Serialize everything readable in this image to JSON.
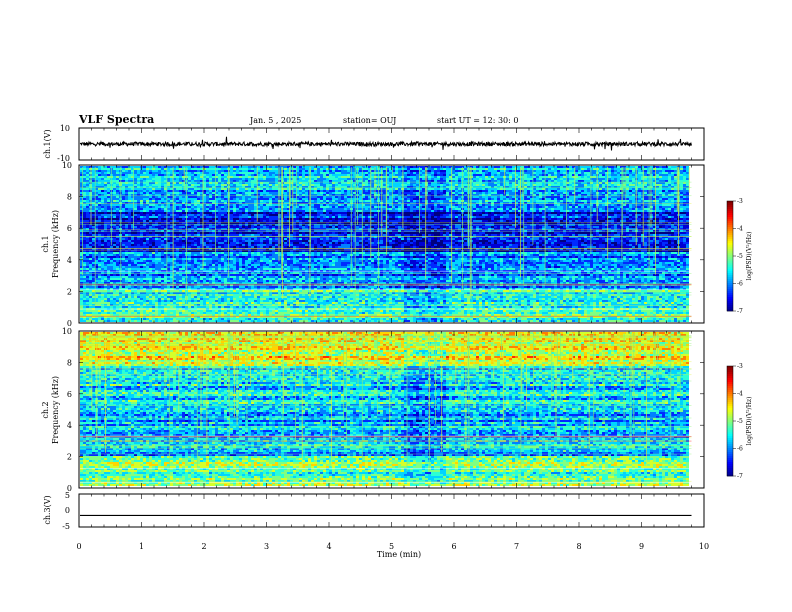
{
  "header": {
    "title": "VLF Spectra",
    "date": "Jan. 5 , 2025",
    "station": "station= OUJ",
    "start": "start UT = 12: 30: 0"
  },
  "chart_data": [
    {
      "type": "line",
      "name": "ch1-waveform",
      "ylabel": "ch.1(V)",
      "ylim": [
        -10,
        10
      ],
      "yticks": [
        "10",
        "-10"
      ],
      "x_range_min": [
        0,
        9.8
      ],
      "trace_level_v": 0,
      "trace_amplitude_v": 2.5,
      "color": "#000000"
    },
    {
      "type": "heatmap",
      "name": "ch1-spectrogram",
      "ylabel_channel": "ch.1",
      "ylabel": "Frequency (kHz)",
      "ylim": [
        0,
        10
      ],
      "yticks": [
        "0",
        "2",
        "4",
        "6",
        "8",
        "10"
      ],
      "x_range_min": [
        0,
        9.8
      ],
      "colorbar": {
        "label": "log(PSD)(V²/Hz)",
        "min": -7,
        "max": -3,
        "ticks": [
          "-3",
          "-4",
          "-5",
          "-6",
          "-7"
        ]
      }
    },
    {
      "type": "heatmap",
      "name": "ch2-spectrogram",
      "ylabel_channel": "ch.2",
      "ylabel": "Frequency (kHz)",
      "ylim": [
        0,
        10
      ],
      "yticks": [
        "0",
        "2",
        "4",
        "6",
        "8",
        "10"
      ],
      "x_range_min": [
        0,
        9.8
      ],
      "colorbar": {
        "label": "log(PSD)(V²/Hz)",
        "min": -7,
        "max": -3,
        "ticks": [
          "-3",
          "-4",
          "-5",
          "-6",
          "-7"
        ]
      }
    },
    {
      "type": "line",
      "name": "ch3-waveform",
      "ylabel": "ch.3(V)",
      "ylim": [
        -5,
        5
      ],
      "yticks": [
        "5",
        "0",
        "-5"
      ],
      "x_range_min": [
        0,
        9.8
      ],
      "trace_level_v": -1.5,
      "color": "#000000"
    }
  ],
  "xaxis": {
    "label": "Time (min)",
    "range": [
      0,
      10
    ],
    "ticks": [
      "0",
      "1",
      "2",
      "3",
      "4",
      "5",
      "6",
      "7",
      "8",
      "9",
      "10"
    ]
  }
}
